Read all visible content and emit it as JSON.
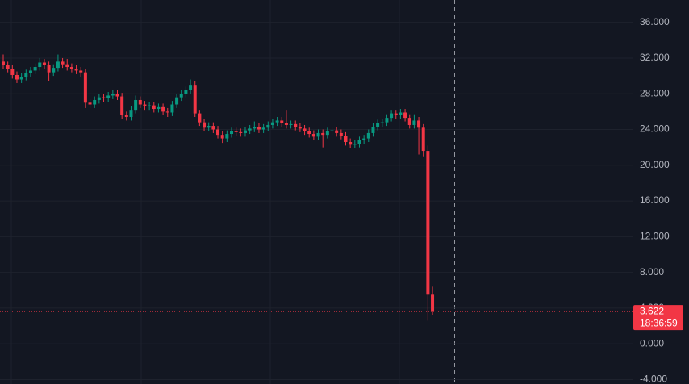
{
  "chart_data": {
    "type": "candlestick",
    "up_color": "#089981",
    "down_color": "#f23645",
    "ylim": [
      -4.5,
      38.5
    ],
    "yticks": [
      {
        "value": 36,
        "label": "36.000"
      },
      {
        "value": 32,
        "label": "32.000"
      },
      {
        "value": 28,
        "label": "28.000"
      },
      {
        "value": 24,
        "label": "24.000"
      },
      {
        "value": 20,
        "label": "20.000"
      },
      {
        "value": 16,
        "label": "16.000"
      },
      {
        "value": 12,
        "label": "12.000"
      },
      {
        "value": 8,
        "label": "8.000"
      },
      {
        "value": 4,
        "label": "4.000"
      },
      {
        "value": 0,
        "label": "0.000"
      },
      {
        "value": -4,
        "label": "-4.000"
      }
    ],
    "grid": true,
    "last_price": 3.622,
    "countdown": "18:36:59",
    "open": [
      31.6,
      31.2,
      30.8,
      30.1,
      29.6,
      29.9,
      30.3,
      30.6,
      31.0,
      31.5,
      31.2,
      30.4,
      30.9,
      31.6,
      31.3,
      31.0,
      30.8,
      30.6,
      30.4,
      27.0,
      26.8,
      27.3,
      27.6,
      27.5,
      27.8,
      28.0,
      27.7,
      25.6,
      25.4,
      26.2,
      27.3,
      26.8,
      26.6,
      26.7,
      26.3,
      26.5,
      26.0,
      25.9,
      26.8,
      27.6,
      28.0,
      28.4,
      29.0,
      25.8,
      24.8,
      24.2,
      24.4,
      24.0,
      23.4,
      23.0,
      23.5,
      23.8,
      23.7,
      23.6,
      23.9,
      24.1,
      24.3,
      24.0,
      24.2,
      24.5,
      24.8,
      25.0,
      24.7,
      24.5,
      24.6,
      24.3,
      24.1,
      23.8,
      23.5,
      23.2,
      23.6,
      23.4,
      23.8,
      23.9,
      23.6,
      23.3,
      22.6,
      22.3,
      22.4,
      22.8,
      23.0,
      23.6,
      24.3,
      24.7,
      24.8,
      25.3,
      25.8,
      25.6,
      25.9,
      25.3,
      24.5,
      25.0,
      24.2,
      21.6,
      5.5
    ],
    "high": [
      32.4,
      31.6,
      31.2,
      30.5,
      30.3,
      30.7,
      31.0,
      31.4,
      32.0,
      31.9,
      31.6,
      31.3,
      32.4,
      32.0,
      31.9,
      31.4,
      31.2,
      31.0,
      30.8,
      27.4,
      27.7,
      28.0,
      28.0,
      28.2,
      28.4,
      28.4,
      28.1,
      26.0,
      26.6,
      27.8,
      27.7,
      27.2,
      27.1,
      27.1,
      26.9,
      26.9,
      26.4,
      27.2,
      28.0,
      28.4,
      28.8,
      29.6,
      29.4,
      26.2,
      25.2,
      24.8,
      24.8,
      24.4,
      23.8,
      23.9,
      24.2,
      24.2,
      24.1,
      24.3,
      24.5,
      24.9,
      24.7,
      24.6,
      24.9,
      25.2,
      25.4,
      25.4,
      26.2,
      25.0,
      25.0,
      24.7,
      24.5,
      24.2,
      23.9,
      24.0,
      24.0,
      24.2,
      24.3,
      24.3,
      24.0,
      23.7,
      23.0,
      22.8,
      23.2,
      23.4,
      24.0,
      24.7,
      25.1,
      25.2,
      25.7,
      26.2,
      26.2,
      26.3,
      26.3,
      25.7,
      25.7,
      25.4,
      24.6,
      22.2,
      6.4
    ],
    "low": [
      30.8,
      30.4,
      29.7,
      29.2,
      29.2,
      29.5,
      29.9,
      30.2,
      30.6,
      30.8,
      29.4,
      30.0,
      30.5,
      30.9,
      30.6,
      30.4,
      30.2,
      29.9,
      26.4,
      26.4,
      26.4,
      26.9,
      27.1,
      27.1,
      27.4,
      27.3,
      25.2,
      25.0,
      25.0,
      25.8,
      26.4,
      26.2,
      26.2,
      25.9,
      25.9,
      25.6,
      25.4,
      25.5,
      26.4,
      27.2,
      27.6,
      28.0,
      25.4,
      24.4,
      23.8,
      23.8,
      23.6,
      23.0,
      22.5,
      22.6,
      23.1,
      23.3,
      23.2,
      23.2,
      23.5,
      23.7,
      23.6,
      23.6,
      23.8,
      24.1,
      24.4,
      24.3,
      24.1,
      24.1,
      23.9,
      23.7,
      23.4,
      23.1,
      22.8,
      22.8,
      22.0,
      23.0,
      23.4,
      23.2,
      22.9,
      22.2,
      21.9,
      21.9,
      22.0,
      22.4,
      22.6,
      23.2,
      23.9,
      24.3,
      24.4,
      24.9,
      25.2,
      25.2,
      24.9,
      24.1,
      24.1,
      21.2,
      21.0,
      2.6,
      3.2
    ],
    "close": [
      31.2,
      30.8,
      30.1,
      29.6,
      29.9,
      30.3,
      30.6,
      31.0,
      31.5,
      31.2,
      30.4,
      30.9,
      31.6,
      31.3,
      31.0,
      30.8,
      30.6,
      30.4,
      27.0,
      26.8,
      27.3,
      27.6,
      27.5,
      27.8,
      28.0,
      27.7,
      25.6,
      25.4,
      26.2,
      27.3,
      26.8,
      26.6,
      26.7,
      26.3,
      26.5,
      26.0,
      25.9,
      26.8,
      27.6,
      28.0,
      28.4,
      29.0,
      25.8,
      24.8,
      24.2,
      24.4,
      24.0,
      23.4,
      23.0,
      23.5,
      23.8,
      23.7,
      23.6,
      23.9,
      24.1,
      24.3,
      24.0,
      24.2,
      24.5,
      24.8,
      25.0,
      24.7,
      24.5,
      24.6,
      24.3,
      24.1,
      23.8,
      23.5,
      23.2,
      23.6,
      23.4,
      23.8,
      23.9,
      23.6,
      23.3,
      22.6,
      22.3,
      22.4,
      22.8,
      23.0,
      23.6,
      24.3,
      24.7,
      24.8,
      25.3,
      25.8,
      25.6,
      25.9,
      25.3,
      24.5,
      25.0,
      24.2,
      21.6,
      5.5,
      3.622
    ]
  }
}
